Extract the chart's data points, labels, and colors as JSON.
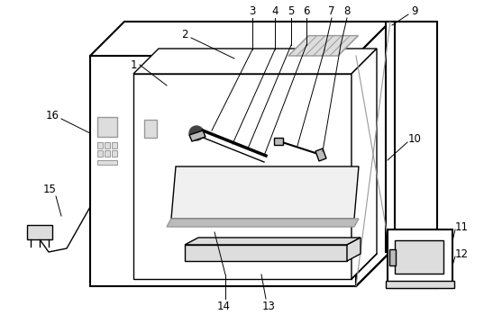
{
  "bg_color": "#ffffff",
  "line_color": "#000000",
  "gray_color": "#999999",
  "light_gray": "#dddddd",
  "mid_gray": "#bbbbbb",
  "fig_width": 5.37,
  "fig_height": 3.7,
  "dpi": 100
}
